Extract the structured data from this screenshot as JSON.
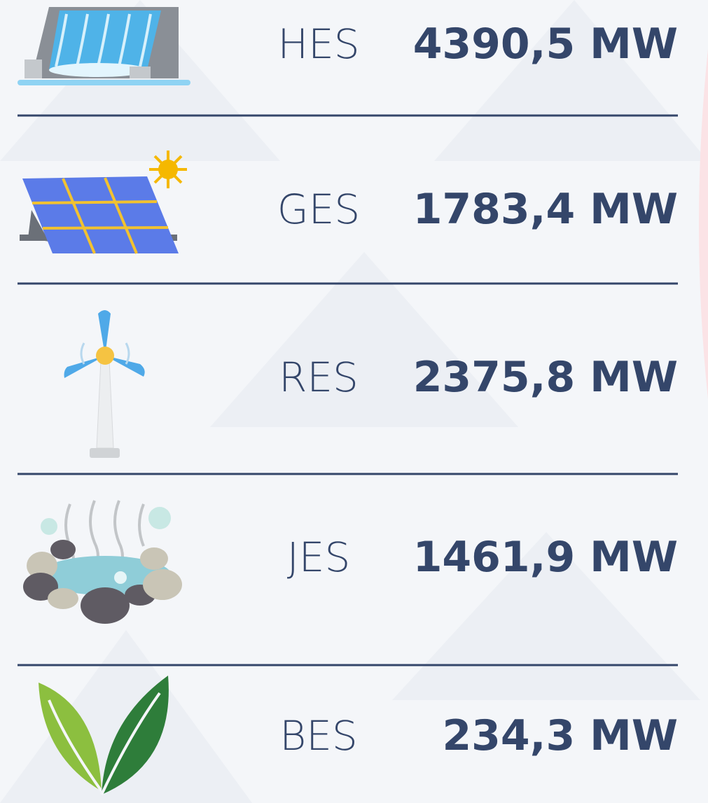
{
  "rows": [
    {
      "label": "HES",
      "value": "4390,5 MW"
    },
    {
      "label": "GES",
      "value": "1783,4 MW"
    },
    {
      "label": "RES",
      "value": "2375,8 MW"
    },
    {
      "label": "JES",
      "value": "1461,9 MW"
    },
    {
      "label": "BES",
      "value": "234,3 MW"
    }
  ]
}
